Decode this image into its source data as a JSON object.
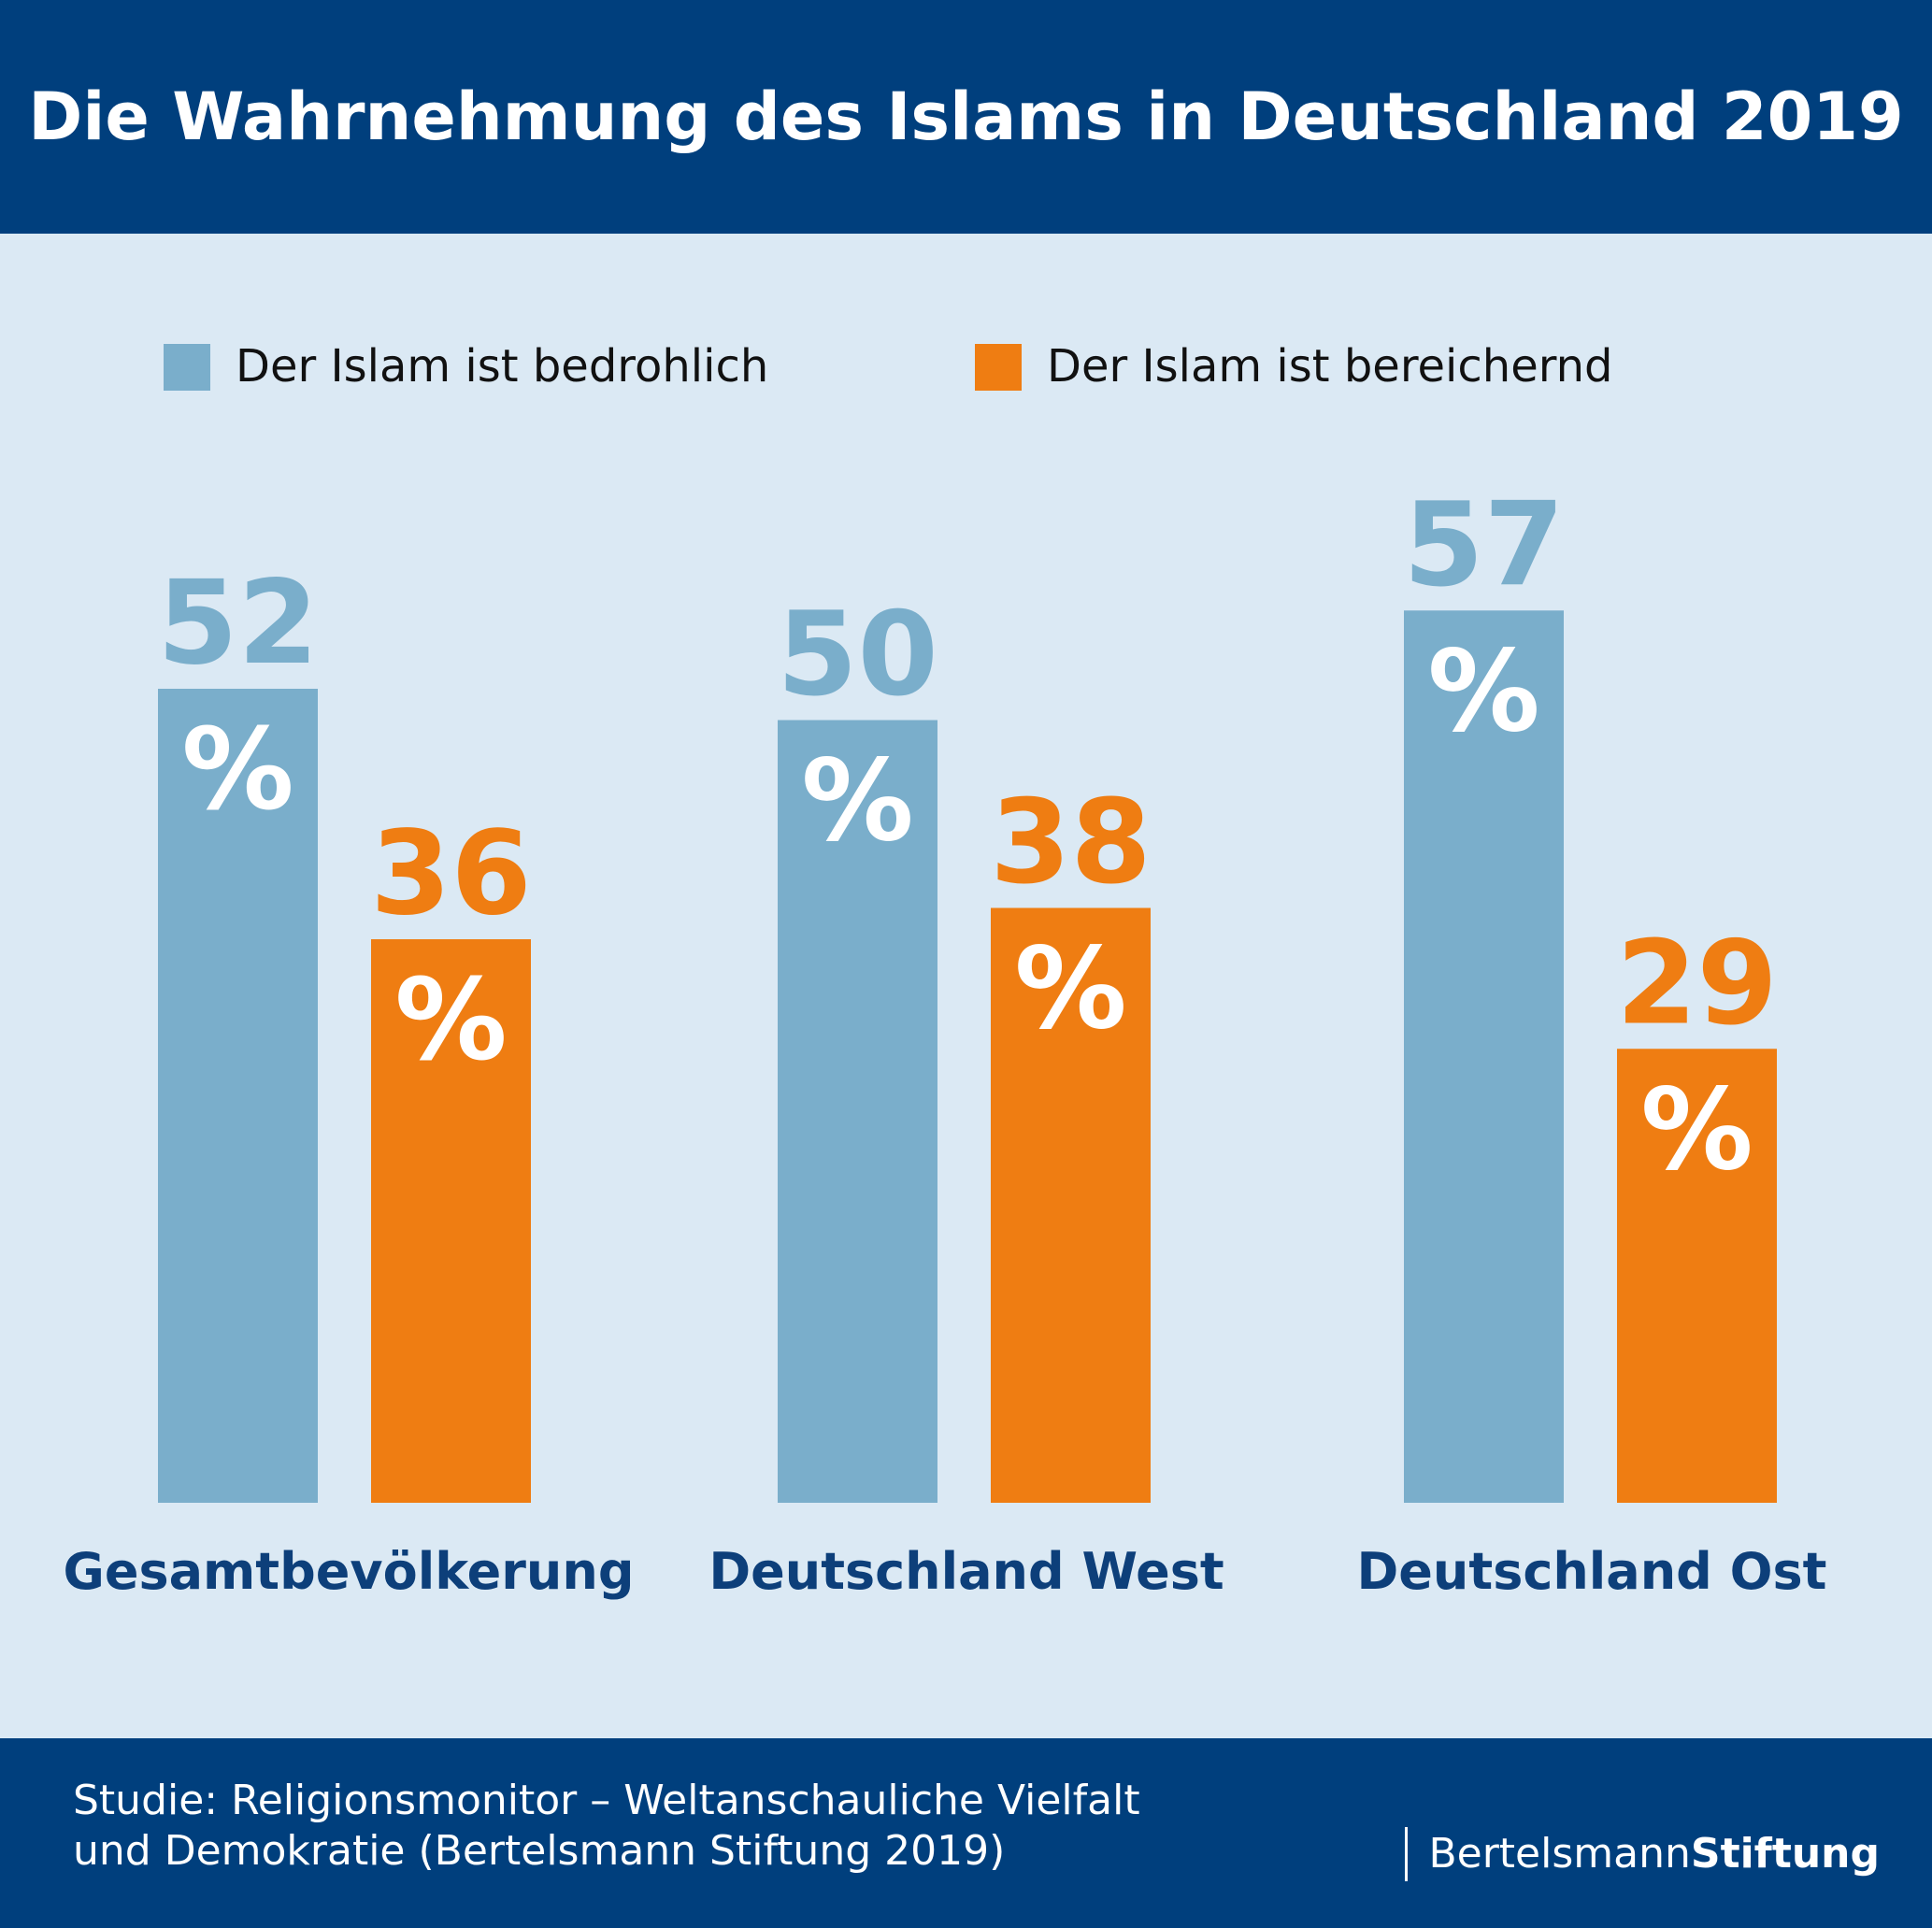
{
  "header": {
    "title": "Die Wahrnehmung des Islams in Deutschland 2019"
  },
  "legend": [
    {
      "label": "Der Islam ist bedrohlich",
      "color": "#7aaecb"
    },
    {
      "label": "Der Islam ist bereichernd",
      "color": "#ef7d12"
    }
  ],
  "chart_data": {
    "type": "bar",
    "categories": [
      "Gesamtbevölkerung",
      "Deutschland West",
      "Deutschland Ost"
    ],
    "series": [
      {
        "name": "Der Islam ist bedrohlich",
        "values": [
          52,
          50,
          57
        ],
        "color": "#7aaecb"
      },
      {
        "name": "Der Islam ist bereichernd",
        "values": [
          36,
          38,
          29
        ],
        "color": "#ef7d12"
      }
    ],
    "value_suffix": "%",
    "category_label_color": "#0d3f7a",
    "grid": false,
    "legend_position": "top"
  },
  "footer": {
    "source_line1": "Studie: Religionsmonitor – Weltanschauliche Vielfalt",
    "source_line2": "und Demokratie (Bertelsmann Stiftung 2019)",
    "logo_regular": "Bertelsmann",
    "logo_bold": "Stiftung"
  }
}
